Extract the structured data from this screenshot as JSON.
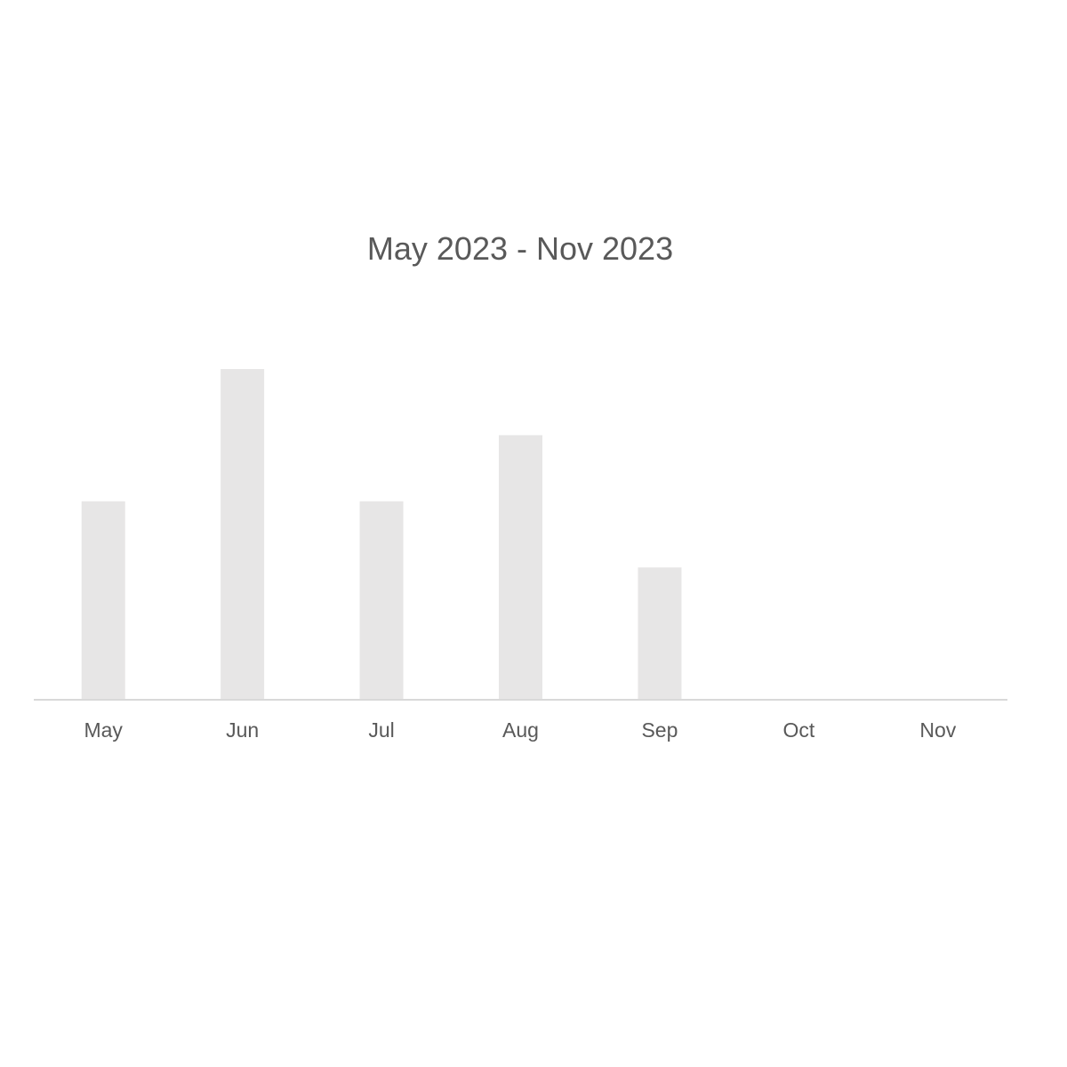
{
  "chart_data": {
    "type": "bar",
    "title": "May 2023 - Nov 2023",
    "categories": [
      "May",
      "Jun",
      "Jul",
      "Aug",
      "Sep",
      "Oct",
      "Nov"
    ],
    "values": [
      3,
      5,
      3,
      4,
      2,
      0,
      0
    ],
    "xlabel": "",
    "ylabel": "",
    "ylim": [
      0,
      5
    ],
    "grid": false,
    "legend": "none",
    "bar_color": "#e7e6e6",
    "axis_color": "#d9d9d9",
    "text_color": "#595959"
  }
}
